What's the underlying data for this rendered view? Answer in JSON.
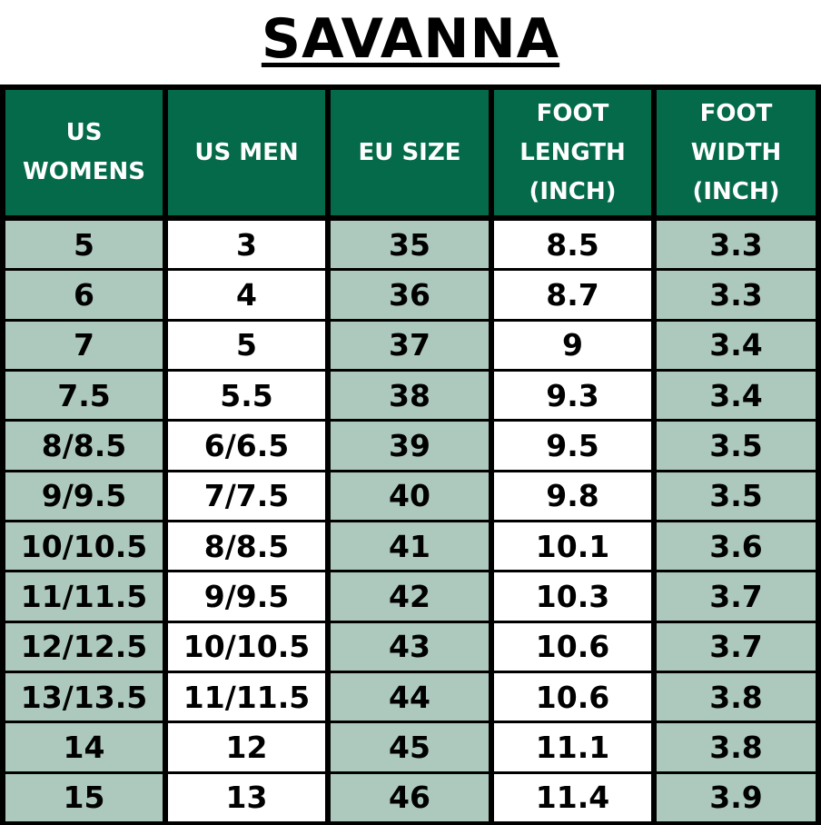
{
  "title": "SAVANNA",
  "colors": {
    "header": "#046a4a",
    "shaded": "#adc9bd",
    "border": "#000000"
  },
  "headers": [
    "US WOMENS",
    "US MEN",
    "EU SIZE",
    "FOOT LENGTH (INCH)",
    "FOOT WIDTH (INCH)"
  ],
  "rows": [
    [
      "5",
      "3",
      "35",
      "8.5",
      "3.3"
    ],
    [
      "6",
      "4",
      "36",
      "8.7",
      "3.3"
    ],
    [
      "7",
      "5",
      "37",
      "9",
      "3.4"
    ],
    [
      "7.5",
      "5.5",
      "38",
      "9.3",
      "3.4"
    ],
    [
      "8/8.5",
      "6/6.5",
      "39",
      "9.5",
      "3.5"
    ],
    [
      "9/9.5",
      "7/7.5",
      "40",
      "9.8",
      "3.5"
    ],
    [
      "10/10.5",
      "8/8.5",
      "41",
      "10.1",
      "3.6"
    ],
    [
      "11/11.5",
      "9/9.5",
      "42",
      "10.3",
      "3.7"
    ],
    [
      "12/12.5",
      "10/10.5",
      "43",
      "10.6",
      "3.7"
    ],
    [
      "13/13.5",
      "11/11.5",
      "44",
      "10.6",
      "3.8"
    ],
    [
      "14",
      "12",
      "45",
      "11.1",
      "3.8"
    ],
    [
      "15",
      "13",
      "46",
      "11.4",
      "3.9"
    ]
  ]
}
